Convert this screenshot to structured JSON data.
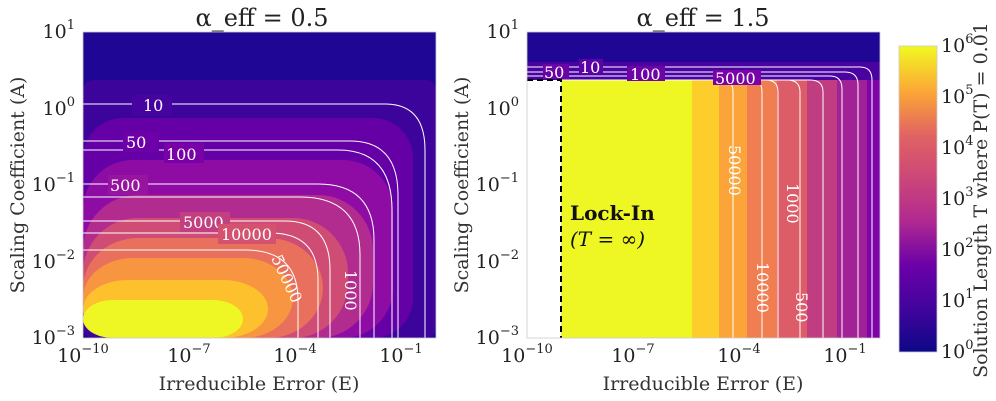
{
  "chart_data": [
    {
      "type": "heatmap",
      "title": "α_eff = 0.5",
      "xlabel": "Irreducible Error (E)",
      "ylabel": "Scaling Coefficient (A)",
      "x_scale": "log",
      "y_scale": "log",
      "xlim": [
        1e-10,
        1
      ],
      "ylim": [
        0.001,
        10
      ],
      "x_ticks": [
        "10^-10",
        "10^-7",
        "10^-4",
        "10^-1"
      ],
      "y_ticks": [
        "10^-3",
        "10^-2",
        "10^-1",
        "10^0",
        "10^1"
      ],
      "contour_levels": [
        "10",
        "50",
        "100",
        "500",
        "1000",
        "5000",
        "10000",
        "50000"
      ]
    },
    {
      "type": "heatmap",
      "title": "α_eff = 1.5",
      "xlabel": "Irreducible Error (E)",
      "ylabel": "Scaling Coefficient (A)",
      "x_scale": "log",
      "y_scale": "log",
      "xlim": [
        1e-10,
        1
      ],
      "ylim": [
        0.001,
        10
      ],
      "x_ticks": [
        "10^-10",
        "10^-7",
        "10^-4",
        "10^-1"
      ],
      "y_ticks": [
        "10^-3",
        "10^-2",
        "10^-1",
        "10^0",
        "10^1"
      ],
      "contour_levels": [
        "10",
        "50",
        "100",
        "500",
        "1000",
        "5000",
        "10000",
        "50000"
      ],
      "annotation": {
        "title": "Lock-In",
        "subtitle": "(T = ∞)"
      }
    }
  ],
  "colorbar": {
    "label": "Solution Length T where P(T) = 0.01",
    "scale": "log",
    "range": [
      1,
      1000000
    ],
    "ticks": [
      "10^0",
      "10^1",
      "10^2",
      "10^3",
      "10^4",
      "10^5",
      "10^6"
    ],
    "colormap": "plasma"
  },
  "colors": {
    "contour": "#ffffff",
    "lockin_border": "#000000"
  }
}
